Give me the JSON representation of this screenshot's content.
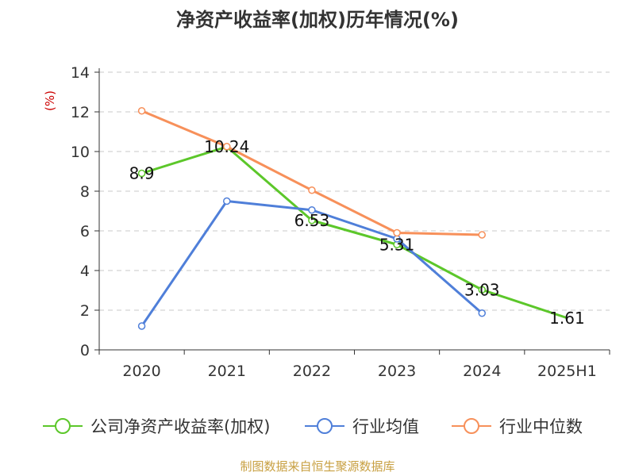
{
  "chart_data": {
    "type": "line",
    "title": "净资产收益率(加权)历年情况(%)",
    "ylabel": "(%)",
    "categories": [
      "2020",
      "2021",
      "2022",
      "2023",
      "2024",
      "2025H1"
    ],
    "ylim": [
      0,
      14
    ],
    "yticks": [
      0,
      2,
      4,
      6,
      8,
      10,
      12,
      14
    ],
    "grid": true,
    "legend_position": "bottom",
    "series": [
      {
        "name": "公司净资产收益率(加权)",
        "color": "#5cc72a",
        "values": [
          8.9,
          10.24,
          6.53,
          5.31,
          3.03,
          1.61
        ],
        "labels": [
          "8.9",
          "10.24",
          "6.53",
          "5.31",
          "3.03",
          "1.61"
        ]
      },
      {
        "name": "行业均值",
        "color": "#4f7fd9",
        "values": [
          1.2,
          7.5,
          7.05,
          5.6,
          1.85,
          null
        ]
      },
      {
        "name": "行业中位数",
        "color": "#f7905a",
        "values": [
          12.05,
          10.25,
          8.05,
          5.9,
          5.8,
          null
        ]
      }
    ]
  },
  "source": "制图数据来自恒生聚源数据库"
}
